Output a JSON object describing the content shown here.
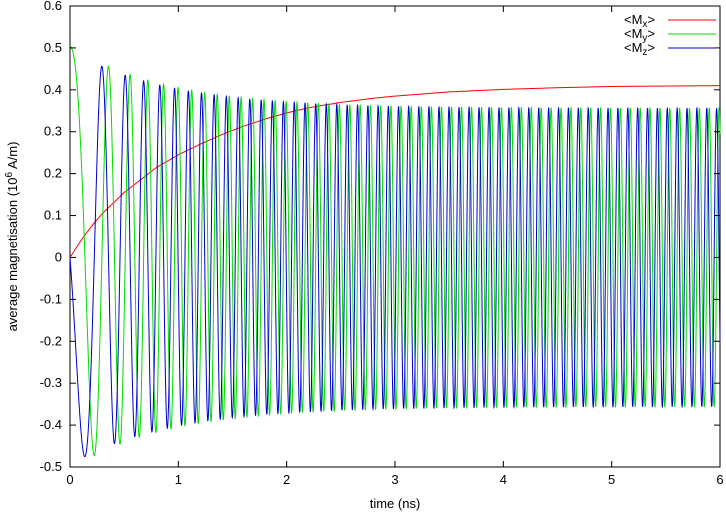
{
  "chart_data": {
    "type": "line",
    "xlabel": "time (ns)",
    "ylabel": "average magnetisation (10^6 A/m)",
    "ylabel_parts": {
      "pre": "average magnetisation (10",
      "sup": "6",
      "post": " A/m)"
    },
    "xlim": [
      0,
      6
    ],
    "ylim": [
      -0.5,
      0.6
    ],
    "x_ticks": [
      0,
      1,
      2,
      3,
      4,
      5,
      6
    ],
    "x_tick_labels": [
      "0",
      "1",
      "2",
      "3",
      "4",
      "5",
      "6"
    ],
    "y_ticks": [
      -0.5,
      -0.4,
      -0.3,
      -0.2,
      -0.1,
      0,
      0.1,
      0.2,
      0.3,
      0.4,
      0.5,
      0.6
    ],
    "y_tick_labels": [
      "-0.5",
      "-0.4",
      "-0.3",
      "-0.2",
      "-0.1",
      "0",
      "0.1",
      "0.2",
      "0.3",
      "0.4",
      "0.5",
      "0.6"
    ],
    "grid": false,
    "legend_position": "top-right",
    "series": [
      {
        "name": "<Mx>",
        "label_parts": {
          "pre": "<M",
          "sub": "x",
          "post": ">"
        },
        "color": "#ff0000",
        "x": [
          0,
          0.1,
          0.2,
          0.3,
          0.4,
          0.5,
          0.6,
          0.8,
          1.0,
          1.2,
          1.4,
          1.6,
          1.8,
          2.0,
          2.2,
          2.5,
          2.8,
          3.0,
          3.5,
          4.0,
          4.5,
          5.0,
          5.5,
          6.0
        ],
        "y": [
          0.0,
          0.04,
          0.075,
          0.105,
          0.13,
          0.155,
          0.175,
          0.215,
          0.245,
          0.27,
          0.293,
          0.313,
          0.33,
          0.345,
          0.357,
          0.37,
          0.38,
          0.385,
          0.395,
          0.401,
          0.405,
          0.408,
          0.409,
          0.41
        ]
      },
      {
        "name": "<My>",
        "label_parts": {
          "pre": "<M",
          "sub": "y",
          "post": ">"
        },
        "color": "#00dd00",
        "x": [
          0,
          0.05,
          0.1,
          0.2,
          0.3,
          0.44,
          0.55,
          0.68,
          0.8,
          0.92,
          1.02,
          1.12,
          1.5,
          2.0,
          2.5,
          3.0,
          3.5,
          4.0,
          4.5,
          5.0,
          5.5,
          6.0
        ],
        "y": [
          0.505,
          0.5,
          0.48,
          0.33,
          0.0,
          -0.485,
          0.0,
          0.465,
          0.0,
          -0.455,
          0.0,
          0.45,
          0.42,
          0.39,
          0.375,
          0.365,
          0.36,
          0.358,
          0.356,
          0.355,
          0.355,
          0.355
        ],
        "oscillation_trough": [
          -0.43,
          -0.39,
          -0.375,
          -0.365,
          -0.36,
          -0.358,
          -0.356,
          -0.355,
          -0.355,
          -0.355
        ]
      },
      {
        "name": "<Mz>",
        "label_parts": {
          "pre": "<M",
          "sub": "z",
          "post": ">"
        },
        "color": "#0000cc",
        "x": [
          0,
          0.1,
          0.2,
          0.3,
          0.42,
          0.54,
          0.66,
          0.78,
          0.9,
          1.0,
          1.5,
          2.0,
          2.5,
          3.0,
          3.5,
          4.0,
          4.5,
          5.0,
          5.5,
          6.0
        ],
        "y": [
          0.0,
          -0.22,
          -0.42,
          -0.49,
          0.0,
          0.48,
          0.0,
          -0.465,
          0.0,
          0.455,
          0.41,
          0.38,
          0.37,
          0.365,
          0.36,
          0.358,
          0.356,
          0.355,
          0.355,
          0.355
        ]
      }
    ]
  }
}
